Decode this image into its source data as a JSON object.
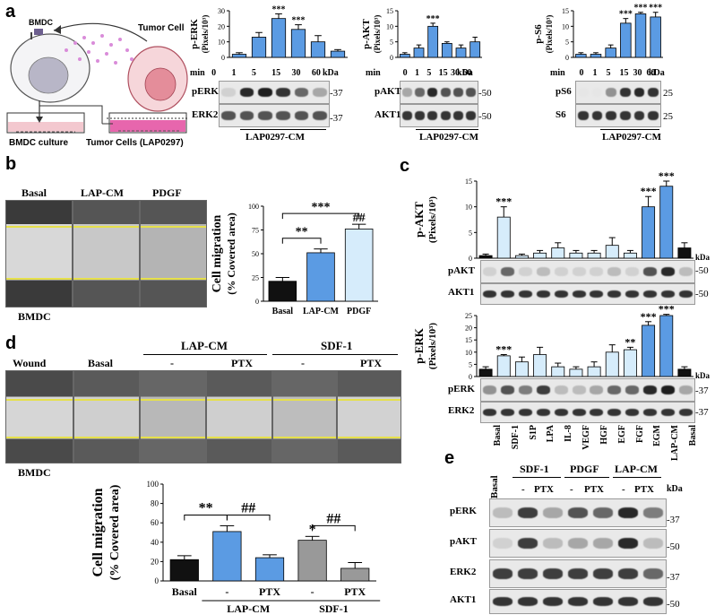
{
  "panel_a": {
    "letter": "a",
    "schematic": {
      "bmdc_label": "BMDC",
      "tumor_cell_label": "Tumor Cell",
      "bmdc_culture_label": "BMDC culture",
      "tumor_cells_label": "Tumor Cells (LAP0297)"
    },
    "min_label": "min",
    "kda_label": "kDa",
    "times": [
      "0",
      "1",
      "5",
      "15",
      "30",
      "60"
    ],
    "condition_label": "LAP0297-CM",
    "erk": {
      "ylabel": "p-ERK",
      "yunit": "(Pixels/10³)",
      "blot_rows": [
        "pERK",
        "ERK2"
      ],
      "mw": [
        "-37",
        "-37"
      ]
    },
    "akt": {
      "ylabel": "p-AKT",
      "yunit": "(Pixels/10³)",
      "blot_rows": [
        "pAKT",
        "AKT1"
      ],
      "mw": [
        "-50",
        "-50"
      ]
    },
    "s6": {
      "ylabel": "p-S6",
      "yunit": "(Pixels/10³)",
      "blot_rows": [
        "pS6",
        "S6"
      ],
      "mw": [
        "25",
        "25"
      ]
    }
  },
  "panel_b": {
    "letter": "b",
    "photo_labels": [
      "Basal",
      "LAP-CM",
      "PDGF"
    ],
    "bmdc_label": "BMDC"
  },
  "panel_c": {
    "letter": "c",
    "lanes": [
      "Basal",
      "SDF-1",
      "S1P",
      "LPA",
      "IL-8",
      "VEGF",
      "HGF",
      "EGF",
      "FGF",
      "EGM",
      "LAP-CM",
      "Basal"
    ],
    "akt_blot_rows": [
      "pAKT",
      "AKT1"
    ],
    "akt_mw": [
      "-50",
      "-50"
    ],
    "erk_blot_rows": [
      "pERK",
      "ERK2"
    ],
    "erk_mw": [
      "-37",
      "-37"
    ],
    "kda_label": "kDa"
  },
  "panel_d": {
    "letter": "d",
    "photo_labels": [
      "Wound",
      "Basal",
      "-",
      "PTX",
      "-",
      "PTX"
    ],
    "group_labels": [
      "LAP-CM",
      "SDF-1"
    ],
    "bmdc_label": "BMDC"
  },
  "panel_e": {
    "letter": "e",
    "group_labels": [
      "SDF-1",
      "PDGF",
      "LAP-CM"
    ],
    "basal_label": "Basal",
    "sub_labels": [
      "-",
      "PTX",
      "-",
      "PTX",
      "-",
      "PTX"
    ],
    "kda_label": "kDa",
    "rows": [
      "pERK",
      "pAKT",
      "ERK2",
      "AKT1"
    ],
    "mw": [
      "-37",
      "-50",
      "-37",
      "-50"
    ]
  },
  "chart_data": [
    {
      "id": "a-perk",
      "type": "bar",
      "title": "",
      "xlabel": "min",
      "ylabel": "p-ERK (Pixels/10³)",
      "categories": [
        "0",
        "1",
        "5",
        "15",
        "30",
        "60"
      ],
      "values": [
        2,
        13,
        25,
        18,
        10,
        4
      ],
      "errors": [
        1,
        3,
        3,
        3,
        4,
        1
      ],
      "ylim": [
        0,
        30
      ],
      "yticks": [
        0,
        10,
        20,
        30
      ],
      "annotations": [
        "",
        "",
        "***",
        "***",
        "",
        ""
      ]
    },
    {
      "id": "a-pakt",
      "type": "bar",
      "title": "",
      "xlabel": "min",
      "ylabel": "p-AKT (Pixels/10³)",
      "categories": [
        "0",
        "1",
        "5",
        "15",
        "30",
        "60"
      ],
      "values": [
        1,
        3,
        10,
        4.5,
        3,
        5
      ],
      "errors": [
        0.5,
        1,
        1,
        0.5,
        1,
        1.5
      ],
      "ylim": [
        0,
        15
      ],
      "yticks": [
        0,
        5,
        10,
        15
      ],
      "annotations": [
        "",
        "",
        "***",
        "",
        "",
        ""
      ]
    },
    {
      "id": "a-ps6",
      "type": "bar",
      "title": "",
      "xlabel": "min",
      "ylabel": "p-S6 (Pixels/10³)",
      "categories": [
        "0",
        "1",
        "5",
        "15",
        "30",
        "60"
      ],
      "values": [
        1,
        1,
        3,
        11,
        14,
        13
      ],
      "errors": [
        0.5,
        0.5,
        1,
        1.5,
        0.5,
        1.5
      ],
      "ylim": [
        0,
        15
      ],
      "yticks": [
        0,
        5,
        10,
        15
      ],
      "annotations": [
        "",
        "",
        "",
        "***",
        "***",
        "***"
      ]
    },
    {
      "id": "b-migration",
      "type": "bar",
      "title": "",
      "xlabel": "",
      "ylabel": "Cell migration (% Covered area)",
      "categories": [
        "Basal",
        "LAP-CM",
        "PDGF"
      ],
      "values": [
        21,
        51,
        76
      ],
      "errors": [
        4,
        4,
        5
      ],
      "colors": [
        "#111111",
        "#5b9be3",
        "#d6ecfb"
      ],
      "ylim": [
        0,
        100
      ],
      "yticks": [
        0,
        25,
        50,
        75,
        100
      ],
      "significance": [
        {
          "from": 0,
          "to": 1,
          "label": "**"
        },
        {
          "from": 0,
          "to": 2,
          "label": "***"
        },
        {
          "on": 2,
          "label": "##"
        }
      ]
    },
    {
      "id": "c-pakt",
      "type": "bar",
      "title": "",
      "xlabel": "",
      "ylabel": "p-AKT (Pixels/10³)",
      "categories": [
        "Basal",
        "SDF-1",
        "S1P",
        "LPA",
        "IL-8",
        "VEGF",
        "HGF",
        "EGF",
        "FGF",
        "EGM",
        "LAP-CM",
        "Basal"
      ],
      "values": [
        0.5,
        8,
        0.5,
        1,
        2,
        1,
        1,
        2.5,
        1,
        10,
        14,
        2
      ],
      "errors": [
        0.3,
        2,
        0.3,
        0.5,
        1,
        0.5,
        0.5,
        1.5,
        0.5,
        2,
        1,
        1
      ],
      "ylim": [
        0,
        15
      ],
      "yticks": [
        0,
        5,
        10,
        15
      ],
      "annotations": [
        "",
        "***",
        "",
        "",
        "",
        "",
        "",
        "",
        "",
        "***",
        "***",
        ""
      ]
    },
    {
      "id": "c-perk",
      "type": "bar",
      "title": "",
      "xlabel": "",
      "ylabel": "p-ERK (Pixels/10³)",
      "categories": [
        "Basal",
        "SDF-1",
        "S1P",
        "LPA",
        "IL-8",
        "VEGF",
        "HGF",
        "EGF",
        "FGF",
        "EGM",
        "LAP-CM",
        "Basal"
      ],
      "values": [
        3,
        8.5,
        6,
        9,
        4,
        3,
        4,
        10,
        11,
        21,
        25,
        3
      ],
      "errors": [
        1,
        0.5,
        2,
        3,
        1.5,
        1,
        2,
        3,
        1,
        1.5,
        0.5,
        1
      ],
      "ylim": [
        0,
        25
      ],
      "yticks": [
        0,
        5,
        10,
        15,
        20,
        25
      ],
      "annotations": [
        "",
        "***",
        "",
        "",
        "",
        "",
        "",
        "",
        "**",
        "***",
        "***",
        ""
      ]
    },
    {
      "id": "d-migration",
      "type": "bar",
      "title": "",
      "xlabel": "",
      "ylabel": "Cell migration (% Covered area)",
      "categories": [
        "Basal",
        "-",
        "PTX",
        "-",
        "PTX"
      ],
      "groups": [
        "",
        "LAP-CM",
        "LAP-CM",
        "SDF-1",
        "SDF-1"
      ],
      "values": [
        22,
        51,
        24,
        42,
        13
      ],
      "errors": [
        4,
        6,
        3,
        4,
        6
      ],
      "colors": [
        "#111111",
        "#5b9be3",
        "#5b9be3",
        "#999999",
        "#999999"
      ],
      "ylim": [
        0,
        100
      ],
      "yticks": [
        0,
        20,
        40,
        60,
        80,
        100
      ],
      "significance": [
        {
          "from": 0,
          "to": 1,
          "label": "**"
        },
        {
          "from": 1,
          "to": 2,
          "label": "##"
        },
        {
          "on": 3,
          "label": "*"
        },
        {
          "from": 3,
          "to": 4,
          "label": "##"
        }
      ]
    }
  ]
}
